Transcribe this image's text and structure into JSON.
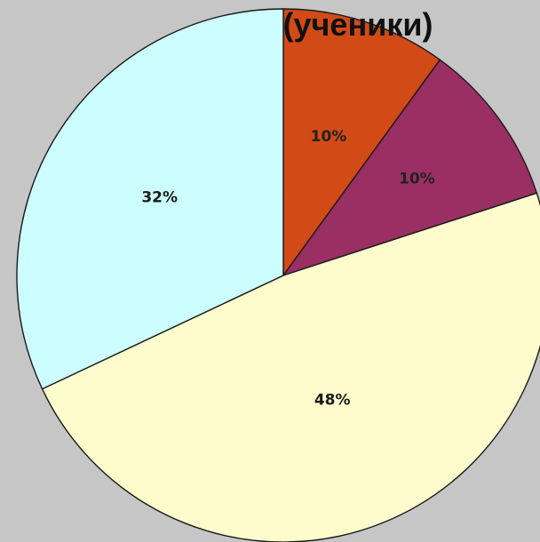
{
  "chart_data": {
    "type": "pie",
    "title": "(ученики)",
    "labels": [
      "10%",
      "10%",
      "48%",
      "32%"
    ],
    "values": [
      10,
      10,
      48,
      32
    ],
    "colors": [
      "#d24a16",
      "#9a2f63",
      "#fefccc",
      "#ccfdff"
    ],
    "label_colors": [
      "#222222",
      "#222222",
      "#1a1a1a",
      "#1a1a1a"
    ],
    "start_angle_deg": 90,
    "direction": "clockwise",
    "legend": "none",
    "background": "#c6c6c6"
  }
}
